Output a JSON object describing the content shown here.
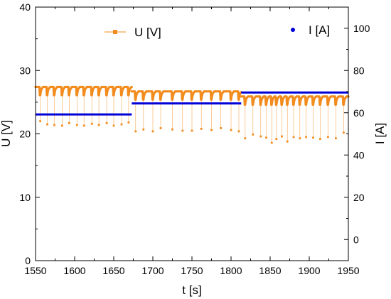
{
  "chart_data": {
    "type": "line",
    "xlabel": "t [s]",
    "ylabel": "U [V]",
    "y2label": "I [A]",
    "xlim": [
      1550,
      1950
    ],
    "ylim": [
      0,
      40
    ],
    "y2lim": [
      -10,
      110
    ],
    "x_ticks": [
      "1550",
      "1600",
      "1650",
      "1700",
      "1750",
      "1800",
      "1850",
      "1900",
      "1950"
    ],
    "y_ticks": [
      "0",
      "10",
      "20",
      "30",
      "40"
    ],
    "y2_ticks": [
      "0",
      "20",
      "40",
      "60",
      "80",
      "100"
    ],
    "grid": false,
    "legend": [
      {
        "label": "U [V]",
        "color": "#f28c1e",
        "marker": "square-line"
      },
      {
        "label": "I [A]",
        "color": "#0000d8",
        "marker": "dot"
      }
    ],
    "colors": {
      "voltage": "#f28c1e",
      "current": "#0000d8"
    },
    "series": [
      {
        "name": "U [V]",
        "axis": "left",
        "color": "#f28c1e",
        "segments": [
          {
            "x_start": 1550,
            "x_end": 1673,
            "baseline": 27.4
          },
          {
            "x_start": 1673,
            "x_end": 1813,
            "baseline": 26.7
          },
          {
            "x_start": 1813,
            "x_end": 1950,
            "baseline": 25.9
          }
        ],
        "dips": [
          {
            "x": 1556,
            "y": 22.0
          },
          {
            "x": 1565,
            "y": 21.5
          },
          {
            "x": 1574,
            "y": 21.4
          },
          {
            "x": 1584,
            "y": 21.3
          },
          {
            "x": 1593,
            "y": 21.7
          },
          {
            "x": 1603,
            "y": 21.4
          },
          {
            "x": 1612,
            "y": 21.3
          },
          {
            "x": 1622,
            "y": 21.6
          },
          {
            "x": 1631,
            "y": 21.4
          },
          {
            "x": 1641,
            "y": 21.7
          },
          {
            "x": 1650,
            "y": 21.3
          },
          {
            "x": 1660,
            "y": 21.5
          },
          {
            "x": 1669,
            "y": 21.8
          },
          {
            "x": 1678,
            "y": 20.4
          },
          {
            "x": 1688,
            "y": 20.7
          },
          {
            "x": 1700,
            "y": 20.4
          },
          {
            "x": 1710,
            "y": 20.9
          },
          {
            "x": 1725,
            "y": 20.7
          },
          {
            "x": 1738,
            "y": 20.5
          },
          {
            "x": 1750,
            "y": 20.5
          },
          {
            "x": 1762,
            "y": 20.8
          },
          {
            "x": 1775,
            "y": 20.6
          },
          {
            "x": 1787,
            "y": 20.9
          },
          {
            "x": 1800,
            "y": 20.6
          },
          {
            "x": 1810,
            "y": 20.4
          },
          {
            "x": 1818,
            "y": 19.3
          },
          {
            "x": 1828,
            "y": 19.9
          },
          {
            "x": 1838,
            "y": 19.6
          },
          {
            "x": 1845,
            "y": 19.4
          },
          {
            "x": 1852,
            "y": 18.6
          },
          {
            "x": 1858,
            "y": 19.2
          },
          {
            "x": 1865,
            "y": 19.6
          },
          {
            "x": 1872,
            "y": 18.8
          },
          {
            "x": 1880,
            "y": 19.5
          },
          {
            "x": 1888,
            "y": 19.3
          },
          {
            "x": 1896,
            "y": 19.5
          },
          {
            "x": 1905,
            "y": 19.4
          },
          {
            "x": 1914,
            "y": 19.2
          },
          {
            "x": 1924,
            "y": 19.5
          },
          {
            "x": 1934,
            "y": 19.3
          },
          {
            "x": 1944,
            "y": 20.2
          }
        ]
      },
      {
        "name": "I [A]",
        "axis": "right",
        "color": "#0000d8",
        "segments": [
          {
            "x_start": 1550,
            "x_end": 1673,
            "y": 59.2
          },
          {
            "x_start": 1673,
            "x_end": 1813,
            "y": 64.4
          },
          {
            "x_start": 1813,
            "x_end": 1950,
            "y": 69.6
          }
        ]
      }
    ]
  }
}
